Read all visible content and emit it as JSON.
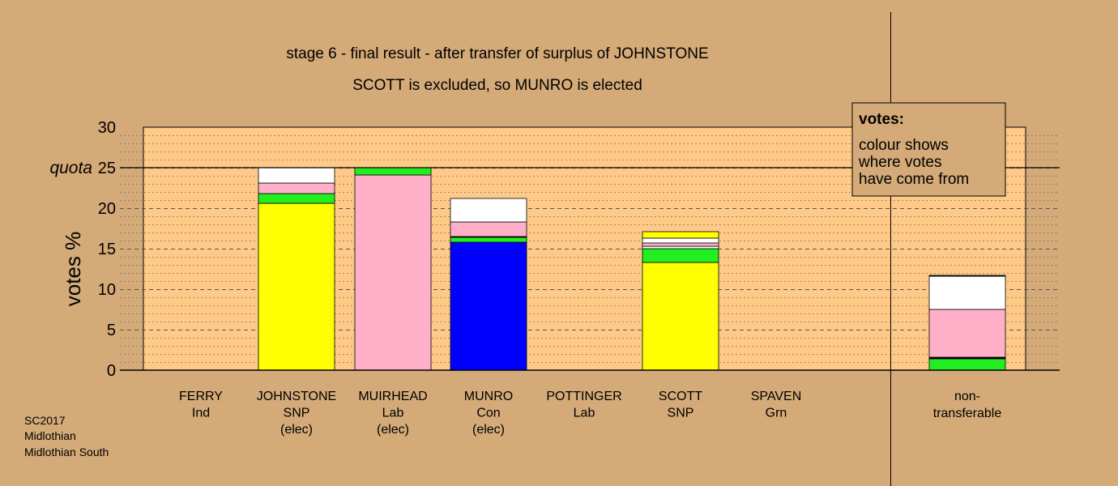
{
  "colors": {
    "page_background": "#d4aa78",
    "plot_background": "#ffc987",
    "SNP": "#ffff00",
    "Lab": "#ffb0c8",
    "Con": "#0000ff",
    "Grn": "#22ee22",
    "other": "#ffffff",
    "misc": "#000000"
  },
  "chart_data": {
    "type": "bar",
    "stacked": true,
    "title": "stage 6 - final result - after transfer of surplus of JOHNSTONE",
    "subtitle": "SCOTT is excluded, so MUNRO is elected",
    "ylabel": "votes %",
    "ylim": [
      0,
      30
    ],
    "yticks": [
      "0",
      "5",
      "10",
      "15",
      "20",
      "25",
      "30"
    ],
    "quota": {
      "label": "quota",
      "value": 25
    },
    "grid": true,
    "legend": {
      "placement": "top-right",
      "title": "votes:",
      "lines": [
        "colour shows",
        "where votes",
        "have come from"
      ]
    },
    "categories": [
      {
        "lines": [
          "FERRY",
          "Ind",
          ""
        ],
        "segments": []
      },
      {
        "lines": [
          "JOHNSTONE",
          "SNP",
          "(elec)"
        ],
        "segments": [
          {
            "source": "SNP",
            "value": 20.6
          },
          {
            "source": "Grn",
            "value": 1.2
          },
          {
            "source": "Lab",
            "value": 1.3
          },
          {
            "source": "other",
            "value": 1.9
          }
        ]
      },
      {
        "lines": [
          "MUIRHEAD",
          "Lab",
          "(elec)"
        ],
        "segments": [
          {
            "source": "Lab",
            "value": 24.1
          },
          {
            "source": "Grn",
            "value": 0.9
          }
        ]
      },
      {
        "lines": [
          "MUNRO",
          "Con",
          "(elec)"
        ],
        "segments": [
          {
            "source": "Con",
            "value": 15.8
          },
          {
            "source": "Grn",
            "value": 0.6
          },
          {
            "source": "misc",
            "value": 0.1
          },
          {
            "source": "Lab",
            "value": 1.8
          },
          {
            "source": "other",
            "value": 2.9
          }
        ]
      },
      {
        "lines": [
          "POTTINGER",
          "Lab",
          ""
        ],
        "segments": []
      },
      {
        "lines": [
          "SCOTT",
          "SNP",
          ""
        ],
        "segments": [
          {
            "source": "SNP",
            "value": 13.3
          },
          {
            "source": "Grn",
            "value": 1.7
          },
          {
            "source": "other",
            "value": 0.3
          },
          {
            "source": "Lab",
            "value": 0.4
          },
          {
            "source": "other",
            "value": 0.6
          },
          {
            "source": "SNP",
            "value": 0.8
          }
        ]
      },
      {
        "lines": [
          "SPAVEN",
          "Grn",
          ""
        ],
        "segments": []
      },
      {
        "lines": [
          "non-",
          "transferable",
          ""
        ],
        "segments": [
          {
            "source": "Grn",
            "value": 1.4
          },
          {
            "source": "misc",
            "value": 0.2
          },
          {
            "source": "Lab",
            "value": 5.9
          },
          {
            "source": "other",
            "value": 4.1
          },
          {
            "source": "misc",
            "value": 0.1
          }
        ]
      }
    ]
  },
  "footer": {
    "lines": [
      "SC2017",
      "Midlothian",
      "Midlothian South"
    ]
  }
}
